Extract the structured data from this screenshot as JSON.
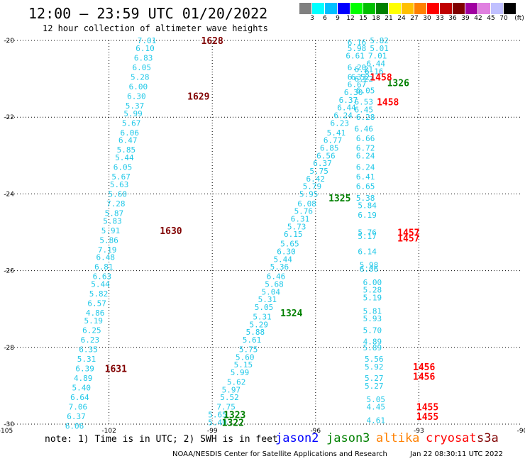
{
  "title": "12:00 — 23:59 UTC 01/20/2022",
  "subtitle": "12 hour collection of altimeter wave heights",
  "scale": {
    "unit": "(ft)",
    "colors": [
      "#808080",
      "#00ffff",
      "#00c0ff",
      "#0000ff",
      "#00ff00",
      "#00c000",
      "#008000",
      "#ffff00",
      "#ffc000",
      "#ff8000",
      "#ff0000",
      "#c00000",
      "#800000",
      "#a000a0",
      "#e080e0",
      "#c0c0ff",
      "#000000"
    ],
    "labels": [
      "3",
      "6",
      "9",
      "12",
      "15",
      "18",
      "21",
      "24",
      "27",
      "30",
      "33",
      "36",
      "39",
      "42",
      "45",
      "70"
    ]
  },
  "axes": {
    "x_ticks": [
      "-105",
      "-102",
      "-99",
      "-96",
      "-93",
      "-90"
    ],
    "y_ticks": [
      "-20",
      "-22",
      "-24",
      "-26",
      "-28",
      "-30"
    ]
  },
  "note": "note: 1) Time is in UTC; 2) SWH is in feet",
  "legend": [
    {
      "name": "jason2",
      "color": "#0000ff"
    },
    {
      "name": "jason3",
      "color": "#008000"
    },
    {
      "name": "altika",
      "color": "#ff8000"
    },
    {
      "name": "cryosat",
      "color": "#ff0000"
    },
    {
      "name": "s3a",
      "color": "#800000"
    }
  ],
  "footer_left": "NOAA/NESDIS Center for Satellite Applications and Research",
  "footer_right": "Jan 22 08:30:11 UTC 2022",
  "tracks": [
    {
      "name": "track-1628-1631",
      "color": "#20c8e8",
      "points": [
        {
          "lon": -100.9,
          "lat": -20.0,
          "v": "7.01"
        },
        {
          "lon": -100.95,
          "lat": -20.2,
          "v": "6.10"
        },
        {
          "lon": -101.0,
          "lat": -20.45,
          "v": "6.83"
        },
        {
          "lon": -101.05,
          "lat": -20.7,
          "v": "6.05"
        },
        {
          "lon": -101.1,
          "lat": -20.95,
          "v": "5.28"
        },
        {
          "lon": -101.15,
          "lat": -21.2,
          "v": "6.00"
        },
        {
          "lon": -101.2,
          "lat": -21.45,
          "v": "6.30"
        },
        {
          "lon": -101.25,
          "lat": -21.7,
          "v": "5.37"
        },
        {
          "lon": -101.3,
          "lat": -21.9,
          "v": "5.99"
        },
        {
          "lon": -101.35,
          "lat": -22.15,
          "v": "5.67"
        },
        {
          "lon": -101.4,
          "lat": -22.4,
          "v": "6.06"
        },
        {
          "lon": -101.45,
          "lat": -22.6,
          "v": "6.47"
        },
        {
          "lon": -101.5,
          "lat": -22.85,
          "v": "5.85"
        },
        {
          "lon": -101.55,
          "lat": -23.05,
          "v": "5.44"
        },
        {
          "lon": -101.6,
          "lat": -23.3,
          "v": "6.05"
        },
        {
          "lon": -101.65,
          "lat": -23.55,
          "v": "5.67"
        },
        {
          "lon": -101.7,
          "lat": -23.75,
          "v": "5.63"
        },
        {
          "lon": -101.75,
          "lat": -24.0,
          "v": "5.60"
        },
        {
          "lon": -101.8,
          "lat": -24.25,
          "v": "7.28"
        },
        {
          "lon": -101.85,
          "lat": -24.5,
          "v": "5.87"
        },
        {
          "lon": -101.9,
          "lat": -24.7,
          "v": "5.83"
        },
        {
          "lon": -101.95,
          "lat": -24.95,
          "v": "5.91"
        },
        {
          "lon": -102.0,
          "lat": -25.2,
          "v": "5.86"
        },
        {
          "lon": -102.05,
          "lat": -25.45,
          "v": "7.19"
        },
        {
          "lon": -102.1,
          "lat": -25.65,
          "v": "6.48"
        },
        {
          "lon": -102.15,
          "lat": -25.9,
          "v": "6.81"
        },
        {
          "lon": -102.2,
          "lat": -26.15,
          "v": "6.63"
        },
        {
          "lon": -102.25,
          "lat": -26.35,
          "v": "5.44"
        },
        {
          "lon": -102.3,
          "lat": -26.6,
          "v": "5.82"
        },
        {
          "lon": -102.35,
          "lat": -26.85,
          "v": "6.57"
        },
        {
          "lon": -102.4,
          "lat": -27.1,
          "v": "4.86"
        },
        {
          "lon": -102.45,
          "lat": -27.3,
          "v": "5.19"
        },
        {
          "lon": -102.5,
          "lat": -27.55,
          "v": "6.25"
        },
        {
          "lon": -102.55,
          "lat": -27.8,
          "v": "6.23"
        },
        {
          "lon": -102.6,
          "lat": -28.05,
          "v": "6.35"
        },
        {
          "lon": -102.65,
          "lat": -28.3,
          "v": "5.31"
        },
        {
          "lon": -102.7,
          "lat": -28.55,
          "v": "6.39"
        },
        {
          "lon": -102.75,
          "lat": -28.8,
          "v": "4.89"
        },
        {
          "lon": -102.8,
          "lat": -29.05,
          "v": "5.40"
        },
        {
          "lon": -102.85,
          "lat": -29.3,
          "v": "6.64"
        },
        {
          "lon": -102.9,
          "lat": -29.55,
          "v": "7.06"
        },
        {
          "lon": -102.95,
          "lat": -29.8,
          "v": "6.37"
        },
        {
          "lon": -103.0,
          "lat": -30.05,
          "v": "6.06"
        }
      ]
    },
    {
      "name": "track-1322-1326",
      "color": "#20c8e8",
      "points": [
        {
          "lon": -98.85,
          "lat": -29.95,
          "v": "5.40"
        },
        {
          "lon": -98.85,
          "lat": -29.75,
          "v": "5.65"
        },
        {
          "lon": -98.6,
          "lat": -29.55,
          "v": "7.75"
        },
        {
          "lon": -98.5,
          "lat": -29.3,
          "v": "5.52"
        },
        {
          "lon": -98.45,
          "lat": -29.1,
          "v": "5.97"
        },
        {
          "lon": -98.3,
          "lat": -28.9,
          "v": "5.62"
        },
        {
          "lon": -98.2,
          "lat": -28.65,
          "v": "5.99"
        },
        {
          "lon": -98.1,
          "lat": -28.45,
          "v": "5.15"
        },
        {
          "lon": -98.05,
          "lat": -28.25,
          "v": "5.60"
        },
        {
          "lon": -97.95,
          "lat": -28.05,
          "v": "5.75"
        },
        {
          "lon": -97.85,
          "lat": -27.8,
          "v": "5.61"
        },
        {
          "lon": -97.75,
          "lat": -27.6,
          "v": "5.88"
        },
        {
          "lon": -97.65,
          "lat": -27.4,
          "v": "5.29"
        },
        {
          "lon": -97.55,
          "lat": -27.2,
          "v": "5.31"
        },
        {
          "lon": -97.5,
          "lat": -26.95,
          "v": "5.05"
        },
        {
          "lon": -97.4,
          "lat": -26.75,
          "v": "5.31"
        },
        {
          "lon": -97.3,
          "lat": -26.55,
          "v": "5.04"
        },
        {
          "lon": -97.2,
          "lat": -26.35,
          "v": "5.68"
        },
        {
          "lon": -97.15,
          "lat": -26.15,
          "v": "6.46"
        },
        {
          "lon": -97.05,
          "lat": -25.9,
          "v": "5.36"
        },
        {
          "lon": -96.95,
          "lat": -25.7,
          "v": "5.44"
        },
        {
          "lon": -96.85,
          "lat": -25.5,
          "v": "6.30"
        },
        {
          "lon": -96.75,
          "lat": -25.3,
          "v": "5.65"
        },
        {
          "lon": -96.65,
          "lat": -25.05,
          "v": "6.15"
        },
        {
          "lon": -96.55,
          "lat": -24.85,
          "v": "5.73"
        },
        {
          "lon": -96.45,
          "lat": -24.65,
          "v": "6.31"
        },
        {
          "lon": -96.35,
          "lat": -24.45,
          "v": "5.76"
        },
        {
          "lon": -96.25,
          "lat": -24.25,
          "v": "6.08"
        },
        {
          "lon": -96.2,
          "lat": -24.0,
          "v": "5.95"
        },
        {
          "lon": -96.1,
          "lat": -23.8,
          "v": "5.79"
        },
        {
          "lon": -96.0,
          "lat": -23.6,
          "v": "6.42"
        },
        {
          "lon": -95.9,
          "lat": -23.4,
          "v": "5.75"
        },
        {
          "lon": -95.8,
          "lat": -23.2,
          "v": "6.37"
        },
        {
          "lon": -95.7,
          "lat": -23.0,
          "v": "6.56"
        },
        {
          "lon": -95.6,
          "lat": -22.8,
          "v": "6.85"
        },
        {
          "lon": -95.5,
          "lat": -22.6,
          "v": "6.77"
        },
        {
          "lon": -95.4,
          "lat": -22.4,
          "v": "5.41"
        },
        {
          "lon": -95.3,
          "lat": -22.15,
          "v": "6.23"
        },
        {
          "lon": -95.2,
          "lat": -21.95,
          "v": "6.24"
        },
        {
          "lon": -95.1,
          "lat": -21.75,
          "v": "6.44"
        },
        {
          "lon": -95.05,
          "lat": -21.55,
          "v": "6.37"
        },
        {
          "lon": -94.9,
          "lat": -21.35,
          "v": "6.30"
        },
        {
          "lon": -94.8,
          "lat": -21.15,
          "v": "6.67"
        },
        {
          "lon": -94.7,
          "lat": -20.95,
          "v": "6.52"
        },
        {
          "lon": -94.6,
          "lat": -20.75,
          "v": "6.21"
        }
      ]
    },
    {
      "name": "track-east-upper",
      "color": "#20c8e8",
      "points": [
        {
          "lon": -94.8,
          "lat": -20.05,
          "v": "6.16"
        },
        {
          "lon": -94.8,
          "lat": -20.2,
          "v": "5.98"
        },
        {
          "lon": -94.85,
          "lat": -20.4,
          "v": "6.61"
        },
        {
          "lon": -94.8,
          "lat": -20.7,
          "v": "6.20"
        },
        {
          "lon": -94.8,
          "lat": -20.95,
          "v": "6.33"
        },
        {
          "lon": -94.6,
          "lat": -21.0,
          "v": "6.22"
        },
        {
          "lon": -94.55,
          "lat": -21.3,
          "v": "6.05"
        },
        {
          "lon": -94.6,
          "lat": -21.6,
          "v": "6.53"
        },
        {
          "lon": -94.6,
          "lat": -21.8,
          "v": "6.45"
        },
        {
          "lon": -94.55,
          "lat": -22.0,
          "v": "6.28"
        },
        {
          "lon": -94.6,
          "lat": -22.3,
          "v": "6.46"
        },
        {
          "lon": -94.55,
          "lat": -22.55,
          "v": "6.66"
        },
        {
          "lon": -94.55,
          "lat": -22.8,
          "v": "6.72"
        },
        {
          "lon": -94.55,
          "lat": -23.0,
          "v": "6.24"
        },
        {
          "lon": -94.55,
          "lat": -23.3,
          "v": "6.24"
        },
        {
          "lon": -94.55,
          "lat": -23.55,
          "v": "6.41"
        },
        {
          "lon": -94.55,
          "lat": -23.8,
          "v": "6.65"
        }
      ]
    },
    {
      "name": "track-east-mid",
      "color": "#20c8e8",
      "points": [
        {
          "lon": -94.15,
          "lat": -20.0,
          "v": "5.82"
        },
        {
          "lon": -94.15,
          "lat": -20.2,
          "v": "5.01"
        },
        {
          "lon": -94.2,
          "lat": -20.4,
          "v": "7.01"
        },
        {
          "lon": -94.25,
          "lat": -20.6,
          "v": "6.44"
        },
        {
          "lon": -94.3,
          "lat": -20.8,
          "v": "6.16"
        }
      ]
    },
    {
      "name": "track-east-lower",
      "color": "#20c8e8",
      "points": [
        {
          "lon": -94.55,
          "lat": -24.1,
          "v": "5.38"
        },
        {
          "lon": -94.5,
          "lat": -24.3,
          "v": "5.84"
        },
        {
          "lon": -94.5,
          "lat": -24.55,
          "v": "6.19"
        },
        {
          "lon": -94.5,
          "lat": -25.0,
          "v": "5.76"
        },
        {
          "lon": -94.5,
          "lat": -25.1,
          "v": "5.17"
        },
        {
          "lon": -94.5,
          "lat": -25.5,
          "v": "6.14"
        },
        {
          "lon": -94.45,
          "lat": -25.85,
          "v": "5.98"
        },
        {
          "lon": -94.45,
          "lat": -25.95,
          "v": "6.06"
        },
        {
          "lon": -94.35,
          "lat": -26.3,
          "v": "6.00"
        },
        {
          "lon": -94.35,
          "lat": -26.5,
          "v": "5.28"
        },
        {
          "lon": -94.35,
          "lat": -26.7,
          "v": "5.19"
        },
        {
          "lon": -94.35,
          "lat": -27.05,
          "v": "5.81"
        },
        {
          "lon": -94.35,
          "lat": -27.25,
          "v": "5.93"
        },
        {
          "lon": -94.35,
          "lat": -27.55,
          "v": "5.70"
        },
        {
          "lon": -94.35,
          "lat": -27.85,
          "v": "4.89"
        },
        {
          "lon": -94.35,
          "lat": -28.0,
          "v": "5.89"
        },
        {
          "lon": -94.3,
          "lat": -28.3,
          "v": "5.56"
        },
        {
          "lon": -94.3,
          "lat": -28.5,
          "v": "5.92"
        },
        {
          "lon": -94.3,
          "lat": -28.8,
          "v": "5.27"
        },
        {
          "lon": -94.3,
          "lat": -29.0,
          "v": "5.27"
        },
        {
          "lon": -94.25,
          "lat": -29.35,
          "v": "5.05"
        },
        {
          "lon": -94.25,
          "lat": -29.55,
          "v": "4.45"
        },
        {
          "lon": -94.25,
          "lat": -29.9,
          "v": "4.61"
        }
      ]
    }
  ],
  "labels": [
    {
      "text": "1628",
      "lon": -99.0,
      "lat": -20.0,
      "color": "#800000"
    },
    {
      "text": "1629",
      "lon": -99.4,
      "lat": -21.45,
      "color": "#800000"
    },
    {
      "text": "1630",
      "lon": -100.2,
      "lat": -24.95,
      "color": "#800000"
    },
    {
      "text": "1631",
      "lon": -101.8,
      "lat": -28.55,
      "color": "#800000"
    },
    {
      "text": "1326",
      "lon": -93.6,
      "lat": -21.1,
      "color": "#008000"
    },
    {
      "text": "1325",
      "lon": -95.3,
      "lat": -24.1,
      "color": "#008000"
    },
    {
      "text": "1324",
      "lon": -96.7,
      "lat": -27.1,
      "color": "#008000"
    },
    {
      "text": "1323",
      "lon": -98.35,
      "lat": -29.75,
      "color": "#008000"
    },
    {
      "text": "1322",
      "lon": -98.4,
      "lat": -29.95,
      "color": "#008000"
    },
    {
      "text": "1458",
      "lon": -94.1,
      "lat": -20.95,
      "color": "#ff0000"
    },
    {
      "text": "1458",
      "lon": -93.9,
      "lat": -21.6,
      "color": "#ff0000"
    },
    {
      "text": "1457",
      "lon": -93.3,
      "lat": -25.0,
      "color": "#ff0000"
    },
    {
      "text": "1457",
      "lon": -93.3,
      "lat": -25.15,
      "color": "#ff0000"
    },
    {
      "text": "1456",
      "lon": -92.85,
      "lat": -28.5,
      "color": "#ff0000"
    },
    {
      "text": "1456",
      "lon": -92.85,
      "lat": -28.75,
      "color": "#ff0000"
    },
    {
      "text": "1455",
      "lon": -92.75,
      "lat": -29.55,
      "color": "#ff0000"
    },
    {
      "text": "1455",
      "lon": -92.75,
      "lat": -29.8,
      "color": "#ff0000"
    }
  ]
}
